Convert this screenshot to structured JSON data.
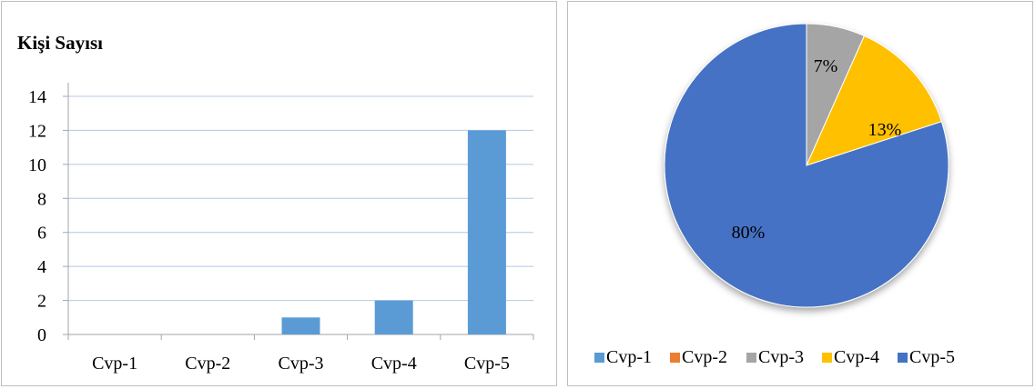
{
  "chart_data": [
    {
      "type": "bar",
      "title": "Kişi Sayısı",
      "categories": [
        "Cvp-1",
        "Cvp-2",
        "Cvp-3",
        "Cvp-4",
        "Cvp-5"
      ],
      "values": [
        0,
        0,
        1,
        2,
        12
      ],
      "ylim": [
        0,
        14
      ],
      "yticks": [
        0,
        2,
        4,
        6,
        8,
        10,
        12,
        14
      ],
      "grid": true,
      "color": "#5b9bd5"
    },
    {
      "type": "pie",
      "categories": [
        "Cvp-1",
        "Cvp-2",
        "Cvp-3",
        "Cvp-4",
        "Cvp-5"
      ],
      "values": [
        0,
        0,
        1,
        2,
        12
      ],
      "labels": [
        "",
        "",
        "7%",
        "13%",
        "80%"
      ],
      "colors": [
        "#5b9bd5",
        "#ed7d31",
        "#a5a5a5",
        "#ffc000",
        "#4472c4"
      ],
      "legend": "bottom"
    }
  ]
}
